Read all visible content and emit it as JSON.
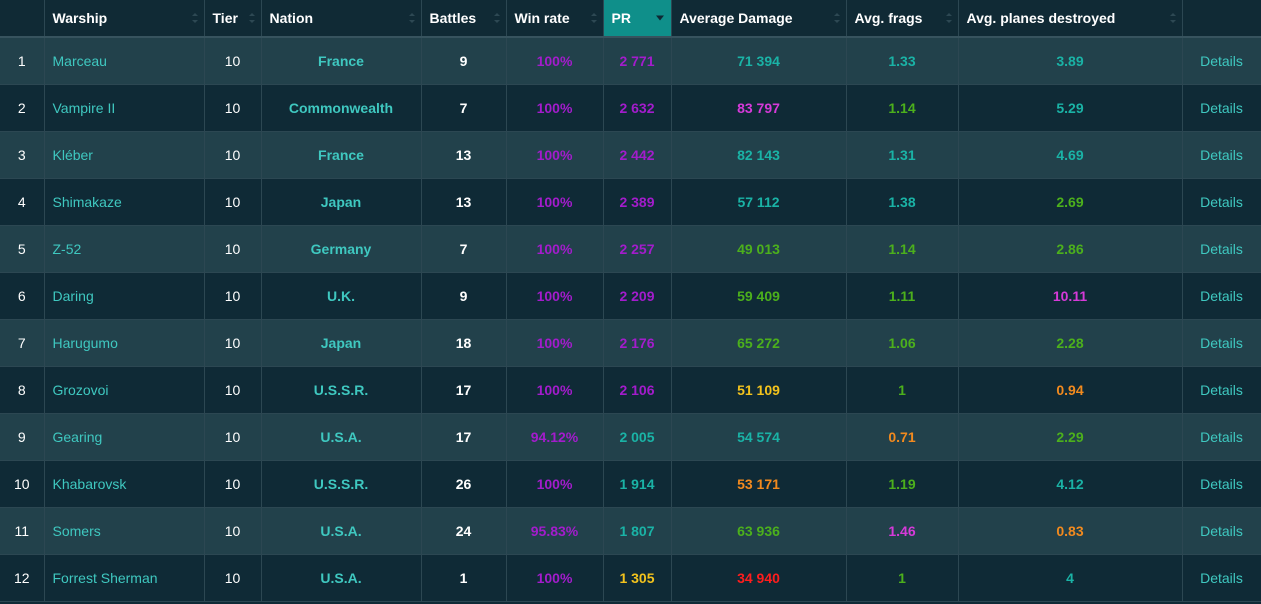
{
  "colors": {
    "purple": "#a31ccc",
    "magenta": "#d63ad9",
    "teal": "#1ab3a6",
    "green": "#4cb01c",
    "yellow": "#f3c31d",
    "orange": "#f28a1e",
    "red": "#fe1d1d",
    "link": "#3fc8c0",
    "header_active": "#0f8f8a"
  },
  "headers": {
    "warship": "Warship",
    "tier": "Tier",
    "nation": "Nation",
    "battles": "Battles",
    "win_rate": "Win rate",
    "pr": "PR",
    "avg_damage": "Average Damage",
    "avg_frags": "Avg. frags",
    "avg_planes": "Avg. planes destroyed"
  },
  "rows": [
    {
      "idx": "1",
      "ship": "Marceau",
      "tier": "10",
      "nation": "France",
      "battles": "9",
      "win_rate": "100%",
      "win_color": "purple",
      "pr": "2 771",
      "pr_color": "purple",
      "dmg": "71 394",
      "dmg_color": "teal",
      "frags": "1.33",
      "frags_color": "teal",
      "planes": "3.89",
      "planes_color": "teal",
      "details": "Details"
    },
    {
      "idx": "2",
      "ship": "Vampire II",
      "tier": "10",
      "nation": "Commonwealth",
      "battles": "7",
      "win_rate": "100%",
      "win_color": "purple",
      "pr": "2 632",
      "pr_color": "purple",
      "dmg": "83 797",
      "dmg_color": "magenta",
      "frags": "1.14",
      "frags_color": "green",
      "planes": "5.29",
      "planes_color": "teal",
      "details": "Details"
    },
    {
      "idx": "3",
      "ship": "Kléber",
      "tier": "10",
      "nation": "France",
      "battles": "13",
      "win_rate": "100%",
      "win_color": "purple",
      "pr": "2 442",
      "pr_color": "purple",
      "dmg": "82 143",
      "dmg_color": "teal",
      "frags": "1.31",
      "frags_color": "teal",
      "planes": "4.69",
      "planes_color": "teal",
      "details": "Details"
    },
    {
      "idx": "4",
      "ship": "Shimakaze",
      "tier": "10",
      "nation": "Japan",
      "battles": "13",
      "win_rate": "100%",
      "win_color": "purple",
      "pr": "2 389",
      "pr_color": "purple",
      "dmg": "57 112",
      "dmg_color": "teal",
      "frags": "1.38",
      "frags_color": "teal",
      "planes": "2.69",
      "planes_color": "green",
      "details": "Details"
    },
    {
      "idx": "5",
      "ship": "Z-52",
      "tier": "10",
      "nation": "Germany",
      "battles": "7",
      "win_rate": "100%",
      "win_color": "purple",
      "pr": "2 257",
      "pr_color": "purple",
      "dmg": "49 013",
      "dmg_color": "green",
      "frags": "1.14",
      "frags_color": "green",
      "planes": "2.86",
      "planes_color": "green",
      "details": "Details"
    },
    {
      "idx": "6",
      "ship": "Daring",
      "tier": "10",
      "nation": "U.K.",
      "battles": "9",
      "win_rate": "100%",
      "win_color": "purple",
      "pr": "2 209",
      "pr_color": "purple",
      "dmg": "59 409",
      "dmg_color": "green",
      "frags": "1.11",
      "frags_color": "green",
      "planes": "10.11",
      "planes_color": "magenta",
      "details": "Details"
    },
    {
      "idx": "7",
      "ship": "Harugumo",
      "tier": "10",
      "nation": "Japan",
      "battles": "18",
      "win_rate": "100%",
      "win_color": "purple",
      "pr": "2 176",
      "pr_color": "purple",
      "dmg": "65 272",
      "dmg_color": "green",
      "frags": "1.06",
      "frags_color": "green",
      "planes": "2.28",
      "planes_color": "green",
      "details": "Details"
    },
    {
      "idx": "8",
      "ship": "Grozovoi",
      "tier": "10",
      "nation": "U.S.S.R.",
      "battles": "17",
      "win_rate": "100%",
      "win_color": "purple",
      "pr": "2 106",
      "pr_color": "purple",
      "dmg": "51 109",
      "dmg_color": "yellow",
      "frags": "1",
      "frags_color": "green",
      "planes": "0.94",
      "planes_color": "orange",
      "details": "Details"
    },
    {
      "idx": "9",
      "ship": "Gearing",
      "tier": "10",
      "nation": "U.S.A.",
      "battles": "17",
      "win_rate": "94.12%",
      "win_color": "purple",
      "pr": "2 005",
      "pr_color": "teal",
      "dmg": "54 574",
      "dmg_color": "teal",
      "frags": "0.71",
      "frags_color": "orange",
      "planes": "2.29",
      "planes_color": "green",
      "details": "Details"
    },
    {
      "idx": "10",
      "ship": "Khabarovsk",
      "tier": "10",
      "nation": "U.S.S.R.",
      "battles": "26",
      "win_rate": "100%",
      "win_color": "purple",
      "pr": "1 914",
      "pr_color": "teal",
      "dmg": "53 171",
      "dmg_color": "orange",
      "frags": "1.19",
      "frags_color": "green",
      "planes": "4.12",
      "planes_color": "teal",
      "details": "Details"
    },
    {
      "idx": "11",
      "ship": "Somers",
      "tier": "10",
      "nation": "U.S.A.",
      "battles": "24",
      "win_rate": "95.83%",
      "win_color": "purple",
      "pr": "1 807",
      "pr_color": "teal",
      "dmg": "63 936",
      "dmg_color": "green",
      "frags": "1.46",
      "frags_color": "magenta",
      "planes": "0.83",
      "planes_color": "orange",
      "details": "Details"
    },
    {
      "idx": "12",
      "ship": "Forrest Sherman",
      "tier": "10",
      "nation": "U.S.A.",
      "battles": "1",
      "win_rate": "100%",
      "win_color": "purple",
      "pr": "1 305",
      "pr_color": "yellow",
      "dmg": "34 940",
      "dmg_color": "red",
      "frags": "1",
      "frags_color": "green",
      "planes": "4",
      "planes_color": "teal",
      "details": "Details"
    }
  ]
}
